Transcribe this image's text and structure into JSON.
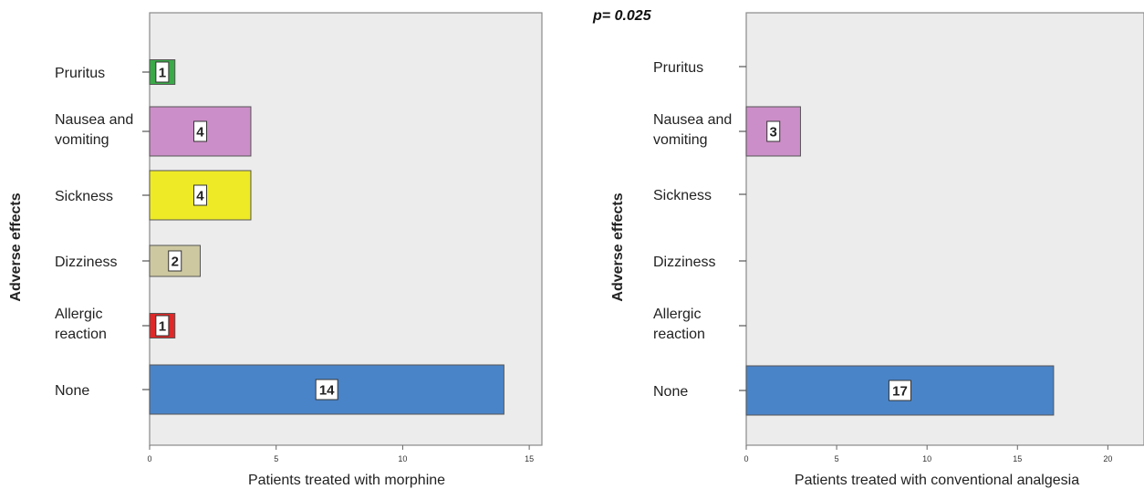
{
  "annotation": "p= 0.025",
  "chart_data": [
    {
      "type": "bar",
      "orientation": "horizontal",
      "categories": [
        "Pruritus",
        "Nausea and vomiting",
        "Sickness",
        "Dizziness",
        "Allergic reaction",
        "None"
      ],
      "category_lines": [
        [
          "Pruritus"
        ],
        [
          "Nausea and",
          "vomiting"
        ],
        [
          "Sickness"
        ],
        [
          "Dizziness"
        ],
        [
          "Allergic",
          "reaction"
        ],
        [
          "None"
        ]
      ],
      "values": [
        1,
        4,
        4,
        2,
        1,
        14
      ],
      "colors": [
        "#3aaa48",
        "#cc8ec8",
        "#eeea26",
        "#cdc8a0",
        "#e02828",
        "#4a84c8"
      ],
      "xlabel": "Patients treated with morphine",
      "ylabel": "Adverse effects",
      "xlim": [
        0,
        15.5
      ],
      "xticks": [
        0,
        5,
        10,
        15
      ],
      "grid": false,
      "background": "#ececec"
    },
    {
      "type": "bar",
      "orientation": "horizontal",
      "categories": [
        "Pruritus",
        "Nausea and vomiting",
        "Sickness",
        "Dizziness",
        "Allergic reaction",
        "None"
      ],
      "category_lines": [
        [
          "Pruritus"
        ],
        [
          "Nausea and",
          "vomiting"
        ],
        [
          "Sickness"
        ],
        [
          "Dizziness"
        ],
        [
          "Allergic",
          "reaction"
        ],
        [
          "None"
        ]
      ],
      "values": [
        0,
        3,
        0,
        0,
        0,
        17
      ],
      "colors": [
        "#3aaa48",
        "#cc8ec8",
        "#eeea26",
        "#cdc8a0",
        "#e02828",
        "#4a84c8"
      ],
      "xlabel": "Patients treated with conventional analgesia",
      "ylabel": "Adverse effects",
      "xlim": [
        0,
        22
      ],
      "xticks": [
        0,
        5,
        10,
        15,
        20
      ],
      "grid": false,
      "background": "#ececec"
    }
  ]
}
